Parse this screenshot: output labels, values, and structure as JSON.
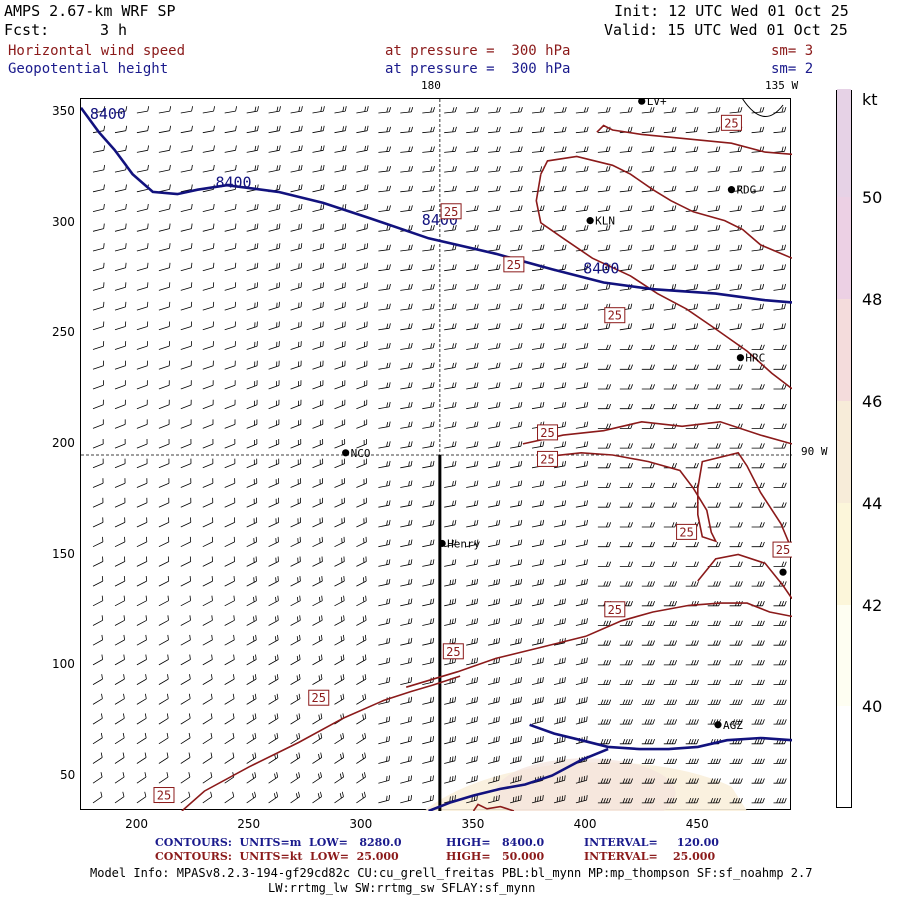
{
  "header": {
    "model": "AMPS 2.67-km WRF SP",
    "fcst_label": "Fcst:",
    "fcst_value": "3 h",
    "init": "Init: 12 UTC Wed 01 Oct 25",
    "valid": "Valid: 15 UTC Wed 01 Oct 25"
  },
  "fields": [
    {
      "name": "Horizontal wind speed",
      "level": "at pressure =  300 hPa",
      "sm": "sm= 3"
    },
    {
      "name": "Geopotential height",
      "level": "at pressure =  300 hPa",
      "sm": "sm= 2"
    }
  ],
  "map_labels": {
    "lon_top_180": "180",
    "lon_top_135w": "135 W",
    "lon_right_90w": "90 W"
  },
  "stations": [
    {
      "name": "LV+",
      "x": 425,
      "y": 355
    },
    {
      "name": "RDG",
      "x": 465,
      "y": 315
    },
    {
      "name": "KLN",
      "x": 402,
      "y": 301
    },
    {
      "name": "HRC",
      "x": 469,
      "y": 239
    },
    {
      "name": "NCO",
      "x": 293,
      "y": 196
    },
    {
      "name": "Henry",
      "x": 336,
      "y": 155
    },
    {
      "name": "AGZ",
      "x": 459,
      "y": 73
    },
    {
      "name": "",
      "x": 488,
      "y": 142
    }
  ],
  "chart_data": {
    "type": "contour",
    "x_ticks": [
      200,
      250,
      300,
      350,
      400,
      450
    ],
    "y_ticks": [
      50,
      100,
      150,
      200,
      250,
      300,
      350
    ],
    "xlim": [
      175,
      492
    ],
    "ylim": [
      34,
      356
    ],
    "crosshair": {
      "x": 335,
      "y": 195
    },
    "cross_section_line": {
      "x": 335,
      "y_from": 34,
      "y_to": 195
    },
    "height_contours": {
      "units": "m",
      "label": "8400",
      "lines": [
        [
          [
            175,
            352
          ],
          [
            183,
            341
          ],
          [
            190,
            333
          ],
          [
            198,
            322
          ],
          [
            207,
            314
          ],
          [
            218,
            313
          ],
          [
            227,
            315
          ],
          [
            240,
            317
          ],
          [
            263,
            314
          ],
          [
            283,
            309
          ],
          [
            304,
            302
          ],
          [
            330,
            293
          ],
          [
            360,
            286
          ],
          [
            385,
            279
          ],
          [
            408,
            273
          ],
          [
            430,
            270
          ],
          [
            458,
            268
          ],
          [
            480,
            265
          ],
          [
            492,
            264
          ]
        ],
        [
          [
            375,
            73
          ],
          [
            386,
            69
          ],
          [
            398,
            66
          ],
          [
            410,
            63
          ],
          [
            424,
            62
          ],
          [
            437,
            62
          ],
          [
            450,
            63
          ],
          [
            463,
            66
          ],
          [
            478,
            67
          ],
          [
            492,
            66
          ]
        ],
        [
          [
            330,
            34
          ],
          [
            340,
            38
          ],
          [
            350,
            41
          ],
          [
            362,
            44
          ],
          [
            373,
            46
          ],
          [
            385,
            50
          ],
          [
            398,
            57
          ],
          [
            410,
            62
          ]
        ]
      ],
      "labels": [
        {
          "x": 187,
          "y": 347,
          "text": "8400"
        },
        {
          "x": 243,
          "y": 316,
          "text": "8400"
        },
        {
          "x": 335,
          "y": 299,
          "text": "8400"
        },
        {
          "x": 407,
          "y": 277,
          "text": "8400"
        }
      ]
    },
    "speed_contours": {
      "units": "kt",
      "label": "25",
      "lines": [
        [
          [
            405,
            341
          ],
          [
            408,
            344
          ],
          [
            412,
            342
          ],
          [
            425,
            340
          ],
          [
            445,
            338
          ],
          [
            465,
            336
          ],
          [
            480,
            332
          ],
          [
            492,
            331
          ]
        ],
        [
          [
            350,
            34
          ],
          [
            352,
            37
          ],
          [
            356,
            35
          ],
          [
            362,
            36
          ],
          [
            368,
            34
          ]
        ],
        [
          [
            380,
            322
          ],
          [
            383,
            328
          ],
          [
            396,
            330
          ],
          [
            412,
            326
          ],
          [
            420,
            322
          ],
          [
            430,
            315
          ],
          [
            438,
            310
          ],
          [
            448,
            305
          ],
          [
            462,
            301
          ],
          [
            470,
            297
          ],
          [
            478,
            290
          ],
          [
            492,
            284
          ]
        ],
        [
          [
            380,
            322
          ],
          [
            378,
            310
          ],
          [
            380,
            300
          ],
          [
            390,
            293
          ],
          [
            403,
            284
          ],
          [
            420,
            276
          ],
          [
            432,
            268
          ],
          [
            445,
            261
          ],
          [
            458,
            252
          ],
          [
            472,
            242
          ],
          [
            483,
            232
          ],
          [
            492,
            225
          ]
        ],
        [
          [
            372,
            200
          ],
          [
            390,
            204
          ],
          [
            408,
            206
          ],
          [
            425,
            210
          ],
          [
            443,
            208
          ],
          [
            460,
            210
          ],
          [
            478,
            204
          ],
          [
            492,
            200
          ]
        ],
        [
          [
            380,
            194
          ],
          [
            398,
            196
          ],
          [
            412,
            195
          ],
          [
            428,
            192
          ],
          [
            442,
            188
          ],
          [
            448,
            180
          ],
          [
            454,
            170
          ],
          [
            456,
            160
          ],
          [
            458,
            156
          ],
          [
            452,
            158
          ],
          [
            450,
            168
          ],
          [
            450,
            180
          ],
          [
            452,
            192
          ],
          [
            468,
            196
          ],
          [
            472,
            190
          ],
          [
            478,
            178
          ],
          [
            487,
            164
          ],
          [
            492,
            152
          ]
        ],
        [
          [
            320,
            90
          ],
          [
            343,
            97
          ],
          [
            360,
            103
          ],
          [
            380,
            108
          ],
          [
            400,
            113
          ],
          [
            416,
            120
          ],
          [
            430,
            124
          ],
          [
            446,
            127
          ],
          [
            460,
            128
          ],
          [
            472,
            128
          ],
          [
            482,
            124
          ],
          [
            492,
            122
          ]
        ],
        [
          [
            220,
            34
          ],
          [
            230,
            43
          ],
          [
            250,
            54
          ],
          [
            272,
            65
          ],
          [
            292,
            76
          ],
          [
            310,
            84
          ],
          [
            322,
            88
          ],
          [
            332,
            91
          ],
          [
            344,
            95
          ]
        ],
        [
          [
            450,
            138
          ],
          [
            458,
            148
          ],
          [
            468,
            150
          ],
          [
            480,
            146
          ],
          [
            488,
            136
          ],
          [
            492,
            130
          ]
        ]
      ],
      "labels": [
        {
          "x": 465,
          "y": 345,
          "text": "25"
        },
        {
          "x": 340,
          "y": 305,
          "text": "25"
        },
        {
          "x": 368,
          "y": 281,
          "text": "25"
        },
        {
          "x": 413,
          "y": 258,
          "text": "25"
        },
        {
          "x": 383,
          "y": 205,
          "text": "25"
        },
        {
          "x": 383,
          "y": 193,
          "text": "25"
        },
        {
          "x": 445,
          "y": 160,
          "text": "25"
        },
        {
          "x": 488,
          "y": 152,
          "text": "25"
        },
        {
          "x": 413,
          "y": 125,
          "text": "25"
        },
        {
          "x": 341,
          "y": 106,
          "text": "25"
        },
        {
          "x": 281,
          "y": 85,
          "text": "25"
        },
        {
          "x": 212,
          "y": 41,
          "text": "25"
        }
      ]
    },
    "shading": {
      "units": "kt",
      "levels": [
        40,
        42,
        44,
        46,
        48,
        50
      ],
      "colors": [
        "#ffffff",
        "#fefef2",
        "#fcf6da",
        "#f7ecd9",
        "#f4dcdc",
        "#ecd0e4",
        "#e6d2e6"
      ],
      "region_color": "#f9f0dc"
    },
    "colorbar_unit": "kt",
    "colorbar_ticks": [
      "40",
      "42",
      "44",
      "46",
      "48",
      "50"
    ],
    "wind_barbs": {
      "spacing": 9.7,
      "style": "barb"
    }
  },
  "footer": {
    "row1_label": "CONTOURS:  UNITS=m  LOW=   8280.0",
    "row1_high": "HIGH=   8400.0",
    "row1_interval": "INTERVAL=     120.00",
    "row2_label": "CONTOURS:  UNITS=kt  LOW=  25.000",
    "row2_high": "HIGH=   50.000",
    "row2_interval": "INTERVAL=    25.000",
    "model_info": "Model Info: MPASv8.2.3-194-gf29cd82c CU:cu_grell_freitas PBL:bl_mynn MP:mp_thompson SF:sf_noahmp 2.7",
    "model_info2": "LW:rrtmg_lw SW:rrtmg_sw SFLAY:sf_mynn"
  }
}
